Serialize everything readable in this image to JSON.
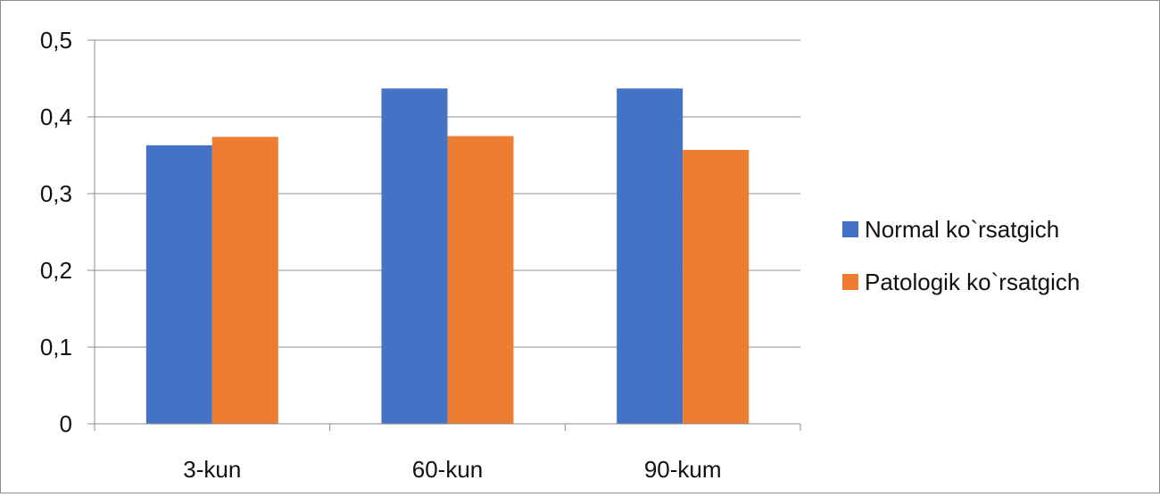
{
  "chart_data": {
    "type": "bar",
    "title": "",
    "xlabel": "",
    "ylabel": "",
    "categories": [
      "3-kun",
      "60-kun",
      "90-kum"
    ],
    "series": [
      {
        "name": "Normal ko`rsatgich",
        "color": "#4472c4",
        "values": [
          0.363,
          0.437,
          0.437
        ]
      },
      {
        "name": "Patologik ko`rsatgich",
        "color": "#ed7d31",
        "values": [
          0.374,
          0.375,
          0.357
        ]
      }
    ],
    "ylim": [
      0,
      0.5
    ],
    "yticks": [
      "0",
      "0,1",
      "0,2",
      "0,3",
      "0,4",
      "0,5"
    ],
    "grid": true,
    "legend_position": "right"
  }
}
